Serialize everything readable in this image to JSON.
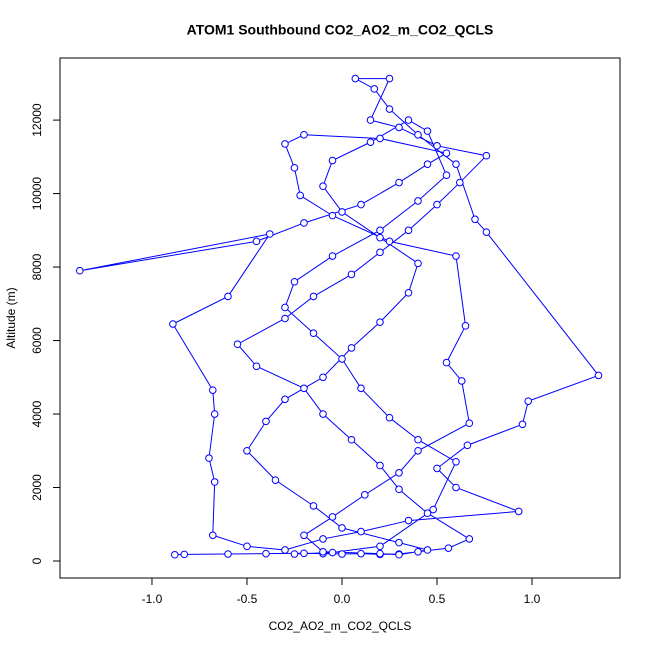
{
  "chart_data": {
    "type": "scatter-line",
    "title": "ATOM1 Southbound CO2_AO2_m_CO2_QCLS",
    "x_label": "CO2_AO2_m_CO2_QCLS",
    "y_label": "Altitude (m)",
    "color": "#0000ff",
    "xlim": [
      -1.484,
      1.463
    ],
    "ylim": [
      -463,
      13690
    ],
    "xticks": [
      {
        "value": -1,
        "label": "-1.0"
      },
      {
        "value": -0.5,
        "label": "-0.5"
      },
      {
        "value": 0,
        "label": "0.0"
      },
      {
        "value": 0.5,
        "label": "0.5"
      },
      {
        "value": 1,
        "label": "1.0"
      }
    ],
    "yticks": [
      0,
      2000,
      4000,
      6000,
      8000,
      10000,
      12000
    ],
    "series": [
      {
        "name": "CO2_AO2_m_CO2_QCLS",
        "x": [
          -0.88,
          -0.83,
          -0.6,
          -0.4,
          -0.2,
          -0.1,
          0.0,
          0.1,
          0.2,
          0.3,
          0.4,
          0.56,
          0.67,
          0.45,
          0.3,
          0.2,
          0.05,
          -0.1,
          -0.2,
          -0.45,
          -0.55,
          -0.3,
          -0.15,
          0.05,
          0.2,
          0.35,
          0.5,
          0.62,
          0.76,
          0.5,
          0.3,
          0.15,
          0.25,
          0.07,
          0.17,
          0.25,
          0.4,
          0.6,
          0.7,
          0.76,
          1.35,
          0.98,
          0.95,
          0.66,
          0.5,
          0.6,
          0.93,
          0.35,
          0.1,
          -0.1,
          -0.3,
          -0.5,
          -0.68,
          -0.67,
          -0.7,
          -0.67,
          -0.68,
          -0.89,
          -0.6,
          -0.38,
          -1.38,
          -0.45,
          -0.2,
          0.1,
          0.3,
          0.45,
          0.55,
          0.2,
          -0.2,
          -0.3,
          -0.25,
          -0.22,
          -0.05,
          0.25,
          0.6,
          0.65,
          0.55,
          0.63,
          0.67,
          0.4,
          0.3,
          0.12,
          -0.05,
          -0.2,
          -0.1,
          0.2,
          0.3,
          0.45,
          0.3,
          0.0,
          -0.15,
          -0.35,
          -0.5,
          -0.4,
          -0.3,
          -0.1,
          0.05,
          0.2,
          0.35,
          0.4,
          0.2,
          0.0,
          -0.1,
          -0.05,
          0.15,
          0.35,
          0.45,
          0.55,
          0.4,
          0.2,
          -0.05,
          -0.25,
          -0.3,
          -0.15,
          0.0,
          0.1,
          0.25,
          0.4,
          0.6,
          0.48,
          0.2,
          -0.05,
          -0.25
        ],
        "y": [
          170,
          180,
          190,
          200,
          210,
          200,
          190,
          200,
          180,
          190,
          250,
          350,
          600,
          1300,
          1950,
          2600,
          3300,
          4000,
          4700,
          5300,
          5900,
          6600,
          7200,
          7800,
          8400,
          9000,
          9700,
          10300,
          11030,
          11300,
          11800,
          12000,
          13130,
          13130,
          12850,
          12300,
          11600,
          10800,
          9300,
          8950,
          5050,
          4350,
          3720,
          3150,
          2520,
          2000,
          1350,
          1100,
          800,
          600,
          300,
          400,
          700,
          2150,
          2800,
          4000,
          4650,
          6450,
          7200,
          8900,
          7900,
          8700,
          9200,
          9700,
          10300,
          10800,
          11100,
          11500,
          11600,
          11350,
          10700,
          9950,
          9400,
          8700,
          8300,
          6400,
          5400,
          4900,
          3750,
          3000,
          2400,
          1800,
          1200,
          700,
          250,
          200,
          170,
          300,
          500,
          900,
          1500,
          2200,
          3000,
          3800,
          4400,
          5000,
          5800,
          6500,
          7300,
          8100,
          8800,
          9500,
          10200,
          10900,
          11400,
          12000,
          11700,
          10500,
          9800,
          9000,
          8300,
          7600,
          6900,
          6200,
          5500,
          4700,
          3900,
          3300,
          2700,
          1400,
          400,
          230,
          190
        ]
      }
    ]
  }
}
